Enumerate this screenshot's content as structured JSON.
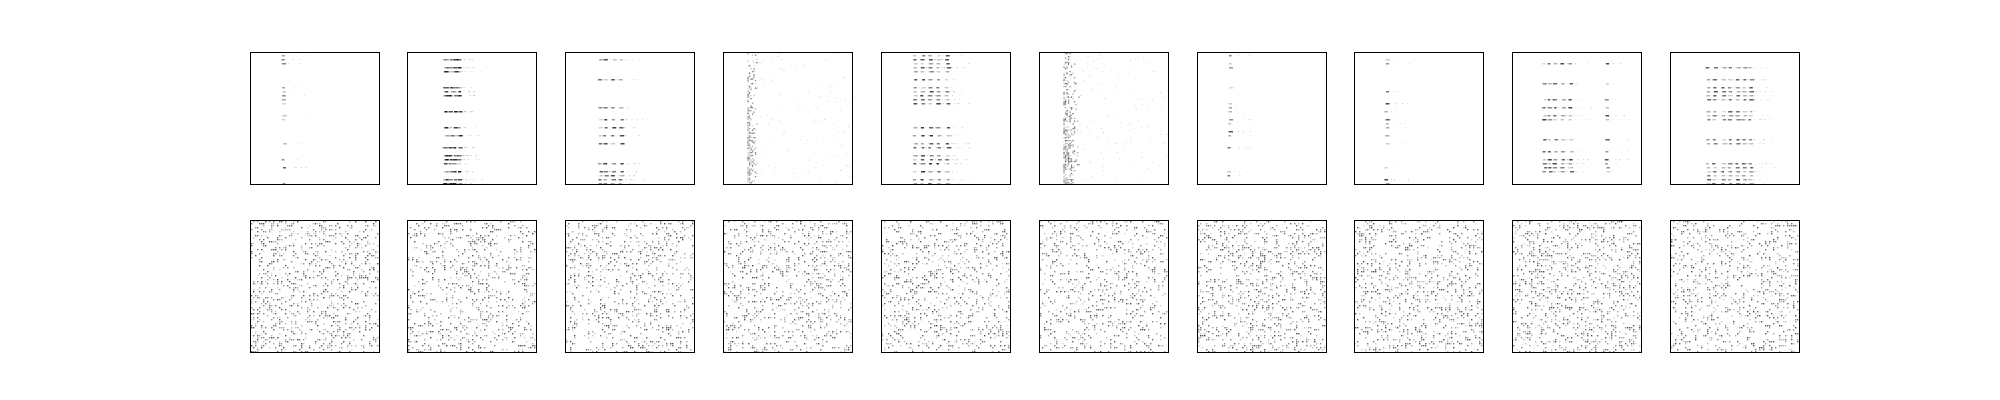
{
  "chart_data": {
    "type": "heatmap",
    "description_free": true,
    "grid": {
      "rows": 2,
      "cols": 10
    },
    "ticks": "none",
    "colormap": {
      "low": "#ffffff",
      "high": "#000000"
    },
    "panels": [
      {
        "row": 0,
        "col": 0,
        "pattern": "sparse-rows",
        "columns": [
          0.25
        ],
        "strength": 0.85
      },
      {
        "row": 0,
        "col": 1,
        "pattern": "sparse-rows",
        "columns": [
          0.28,
          0.3,
          0.33,
          0.36,
          0.39
        ],
        "strength": 0.9
      },
      {
        "row": 0,
        "col": 2,
        "pattern": "sparse-rows",
        "columns": [
          0.26,
          0.3,
          0.36,
          0.42
        ],
        "strength": 0.75
      },
      {
        "row": 0,
        "col": 3,
        "pattern": "band",
        "columns": [
          0.18,
          0.26
        ],
        "strength": 0.8
      },
      {
        "row": 0,
        "col": 4,
        "pattern": "sparse-rows",
        "columns": [
          0.25,
          0.31,
          0.37,
          0.43,
          0.5
        ],
        "strength": 0.8
      },
      {
        "row": 0,
        "col": 5,
        "pattern": "band",
        "columns": [
          0.18,
          0.3
        ],
        "strength": 0.85
      },
      {
        "row": 0,
        "col": 6,
        "pattern": "sparse-rows",
        "columns": [
          0.24
        ],
        "strength": 0.75
      },
      {
        "row": 0,
        "col": 7,
        "pattern": "sparse-rows",
        "columns": [
          0.24
        ],
        "strength": 0.8
      },
      {
        "row": 0,
        "col": 8,
        "pattern": "sparse-rows",
        "columns": [
          0.24,
          0.28,
          0.32,
          0.38,
          0.44,
          0.72
        ],
        "strength": 0.75
      },
      {
        "row": 0,
        "col": 9,
        "pattern": "sparse-rows",
        "columns": [
          0.28,
          0.33,
          0.4,
          0.45,
          0.51,
          0.56,
          0.61
        ],
        "strength": 0.7
      },
      {
        "row": 1,
        "col": 0,
        "pattern": "noise",
        "density": 0.55
      },
      {
        "row": 1,
        "col": 1,
        "pattern": "noise",
        "density": 0.5
      },
      {
        "row": 1,
        "col": 2,
        "pattern": "noise",
        "density": 0.5
      },
      {
        "row": 1,
        "col": 3,
        "pattern": "noise",
        "density": 0.52
      },
      {
        "row": 1,
        "col": 4,
        "pattern": "noise",
        "density": 0.52
      },
      {
        "row": 1,
        "col": 5,
        "pattern": "noise",
        "density": 0.5
      },
      {
        "row": 1,
        "col": 6,
        "pattern": "noise",
        "density": 0.6
      },
      {
        "row": 1,
        "col": 7,
        "pattern": "noise",
        "density": 0.55
      },
      {
        "row": 1,
        "col": 8,
        "pattern": "noise",
        "density": 0.6
      },
      {
        "row": 1,
        "col": 9,
        "pattern": "noise",
        "density": 0.5
      }
    ]
  }
}
